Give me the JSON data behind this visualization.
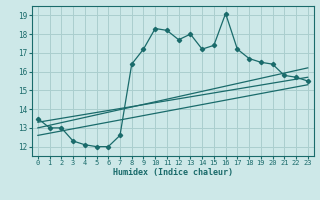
{
  "title": "",
  "xlabel": "Humidex (Indice chaleur)",
  "background_color": "#cde8e8",
  "grid_color": "#aacece",
  "line_color": "#1a6b6b",
  "xlim": [
    -0.5,
    23.5
  ],
  "ylim": [
    11.5,
    19.5
  ],
  "yticks": [
    12,
    13,
    14,
    15,
    16,
    17,
    18,
    19
  ],
  "xticks": [
    0,
    1,
    2,
    3,
    4,
    5,
    6,
    7,
    8,
    9,
    10,
    11,
    12,
    13,
    14,
    15,
    16,
    17,
    18,
    19,
    20,
    21,
    22,
    23
  ],
  "main_line_x": [
    0,
    1,
    2,
    3,
    4,
    5,
    6,
    7,
    8,
    9,
    10,
    11,
    12,
    13,
    14,
    15,
    16,
    17,
    18,
    19,
    20,
    21,
    22,
    23
  ],
  "main_line_y": [
    13.5,
    13.0,
    13.0,
    12.3,
    12.1,
    12.0,
    12.0,
    12.6,
    16.4,
    17.2,
    18.3,
    18.2,
    17.7,
    18.0,
    17.2,
    17.4,
    19.1,
    17.2,
    16.7,
    16.5,
    16.4,
    15.8,
    15.7,
    15.5
  ],
  "trend1_x": [
    0,
    23
  ],
  "trend1_y": [
    13.0,
    16.2
  ],
  "trend2_x": [
    0,
    23
  ],
  "trend2_y": [
    13.3,
    15.7
  ],
  "trend3_x": [
    0,
    23
  ],
  "trend3_y": [
    12.6,
    15.3
  ]
}
